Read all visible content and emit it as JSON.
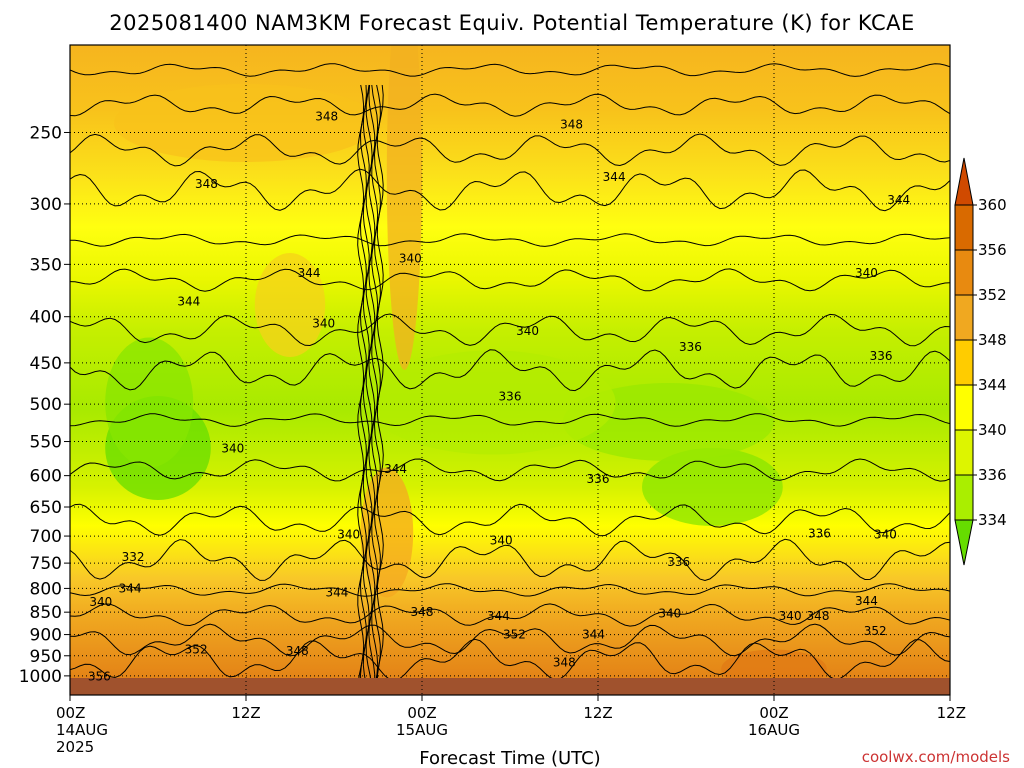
{
  "chart_data": {
    "type": "heatmap",
    "title": "2025081400 NAM3KM Forecast Equiv. Potential Temperature (K) for KCAE",
    "xlabel": "Forecast Time (UTC)",
    "ylabel": "",
    "y_scale": "log-pressure",
    "ylim": [
      1050,
      200
    ],
    "xlim": [
      0,
      60
    ],
    "grid": true,
    "y_ticks": [
      {
        "label": "250",
        "value": 250
      },
      {
        "label": "300",
        "value": 300
      },
      {
        "label": "350",
        "value": 350
      },
      {
        "label": "400",
        "value": 400
      },
      {
        "label": "450",
        "value": 450
      },
      {
        "label": "500",
        "value": 500
      },
      {
        "label": "550",
        "value": 550
      },
      {
        "label": "600",
        "value": 600
      },
      {
        "label": "650",
        "value": 650
      },
      {
        "label": "700",
        "value": 700
      },
      {
        "label": "750",
        "value": 750
      },
      {
        "label": "800",
        "value": 800
      },
      {
        "label": "850",
        "value": 850
      },
      {
        "label": "900",
        "value": 900
      },
      {
        "label": "950",
        "value": 950
      },
      {
        "label": "1000",
        "value": 1000
      }
    ],
    "x_ticks": [
      {
        "hour": 0,
        "lines": [
          "00Z",
          "14AUG",
          "2025"
        ]
      },
      {
        "hour": 12,
        "lines": [
          "12Z"
        ]
      },
      {
        "hour": 24,
        "lines": [
          "00Z",
          "15AUG"
        ]
      },
      {
        "hour": 36,
        "lines": [
          "12Z"
        ]
      },
      {
        "hour": 48,
        "lines": [
          "00Z",
          "16AUG"
        ]
      },
      {
        "hour": 60,
        "lines": [
          "12Z"
        ]
      }
    ],
    "colorbar": {
      "labels": [
        "360",
        "356",
        "352",
        "348",
        "344",
        "340",
        "336",
        "334"
      ],
      "levels": [
        334,
        336,
        340,
        344,
        348,
        352,
        356,
        360
      ],
      "colors": [
        "#66dd00",
        "#aaee00",
        "#ddf500",
        "#ffff00",
        "#ffcc00",
        "#f0a820",
        "#e88a10",
        "#d96a00",
        "#d04a00"
      ]
    },
    "contour_labels": [
      {
        "text": "348",
        "hour": 17.5,
        "p": 240
      },
      {
        "text": "348",
        "hour": 34.2,
        "p": 245
      },
      {
        "text": "348",
        "hour": 9.3,
        "p": 285
      },
      {
        "text": "344",
        "hour": 37.1,
        "p": 280
      },
      {
        "text": "344",
        "hour": 56.5,
        "p": 297
      },
      {
        "text": "340",
        "hour": 23.2,
        "p": 345
      },
      {
        "text": "344",
        "hour": 16.3,
        "p": 358
      },
      {
        "text": "340",
        "hour": 54.3,
        "p": 358
      },
      {
        "text": "344",
        "hour": 8.1,
        "p": 385
      },
      {
        "text": "340",
        "hour": 17.3,
        "p": 407
      },
      {
        "text": "340",
        "hour": 31.2,
        "p": 415
      },
      {
        "text": "336",
        "hour": 42.3,
        "p": 432
      },
      {
        "text": "336",
        "hour": 55.3,
        "p": 442
      },
      {
        "text": "336",
        "hour": 30.0,
        "p": 490
      },
      {
        "text": "340",
        "hour": 11.1,
        "p": 560
      },
      {
        "text": "344",
        "hour": 22.2,
        "p": 590
      },
      {
        "text": "336",
        "hour": 36.0,
        "p": 605
      },
      {
        "text": "336",
        "hour": 51.1,
        "p": 695
      },
      {
        "text": "340",
        "hour": 19.0,
        "p": 697
      },
      {
        "text": "340",
        "hour": 29.4,
        "p": 708
      },
      {
        "text": "340",
        "hour": 55.6,
        "p": 697
      },
      {
        "text": "332",
        "hour": 4.3,
        "p": 738
      },
      {
        "text": "336",
        "hour": 41.5,
        "p": 748
      },
      {
        "text": "344",
        "hour": 4.1,
        "p": 800
      },
      {
        "text": "344",
        "hour": 18.2,
        "p": 808
      },
      {
        "text": "340",
        "hour": 2.1,
        "p": 828
      },
      {
        "text": "344",
        "hour": 54.3,
        "p": 826
      },
      {
        "text": "348",
        "hour": 24.0,
        "p": 850
      },
      {
        "text": "344",
        "hour": 29.2,
        "p": 858
      },
      {
        "text": "340",
        "hour": 40.9,
        "p": 853
      },
      {
        "text": "340",
        "hour": 49.1,
        "p": 858
      },
      {
        "text": "348",
        "hour": 51.0,
        "p": 858
      },
      {
        "text": "352",
        "hour": 54.9,
        "p": 892
      },
      {
        "text": "352",
        "hour": 30.3,
        "p": 900
      },
      {
        "text": "344",
        "hour": 35.7,
        "p": 900
      },
      {
        "text": "352",
        "hour": 8.6,
        "p": 935
      },
      {
        "text": "348",
        "hour": 15.5,
        "p": 938
      },
      {
        "text": "348",
        "hour": 33.7,
        "p": 967
      },
      {
        "text": "356",
        "hour": 2.0,
        "p": 1001
      }
    ]
  },
  "credit": "coolwx.com/models"
}
